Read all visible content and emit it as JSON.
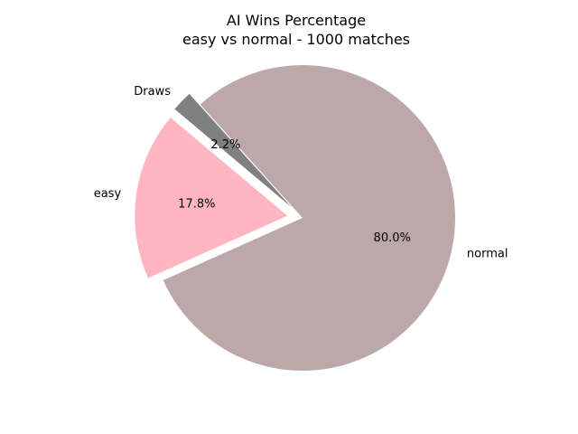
{
  "chart_data": {
    "type": "pie",
    "title": "AI Wins Percentage",
    "subtitle": "easy vs normal - 1000 matches",
    "slices": [
      {
        "label": "easy",
        "value": 17.8,
        "pct_label": "17.8%",
        "color": "#ffb6c1",
        "exploded": true
      },
      {
        "label": "normal",
        "value": 80.0,
        "pct_label": "80.0%",
        "color": "#bca8a8",
        "exploded": false
      },
      {
        "label": "Draws",
        "value": 2.2,
        "pct_label": "2.2%",
        "color": "#808080",
        "exploded": true
      }
    ],
    "start_angle_deg": 140,
    "direction": "counterclockwise"
  }
}
